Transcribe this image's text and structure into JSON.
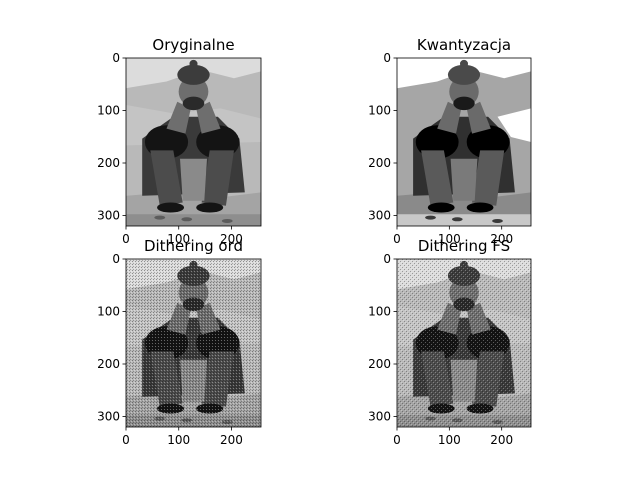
{
  "chart_data": [
    {
      "type": "image",
      "title": "Oryginalne",
      "xlim": [
        0,
        256
      ],
      "ylim": [
        320,
        0
      ],
      "xticks": [
        0,
        100,
        200
      ],
      "yticks": [
        0,
        100,
        200,
        300
      ],
      "render": "continuous",
      "colormap": "gray"
    },
    {
      "type": "image",
      "title": "Kwantyzacja",
      "xlim": [
        0,
        256
      ],
      "ylim": [
        320,
        0
      ],
      "xticks": [
        0,
        100,
        200
      ],
      "yticks": [
        0,
        100,
        200,
        300
      ],
      "render": "quantized",
      "colormap": "gray"
    },
    {
      "type": "image",
      "title": "Dithering ord",
      "xlim": [
        0,
        256
      ],
      "ylim": [
        320,
        0
      ],
      "xticks": [
        0,
        100,
        200
      ],
      "yticks": [
        0,
        100,
        200,
        300
      ],
      "render": "ordered-dither",
      "colormap": "gray"
    },
    {
      "type": "image",
      "title": "Dithering FS",
      "xlim": [
        0,
        256
      ],
      "ylim": [
        320,
        0
      ],
      "xticks": [
        0,
        100,
        200
      ],
      "yticks": [
        0,
        100,
        200,
        300
      ],
      "render": "floyd-steinberg",
      "colormap": "gray"
    }
  ]
}
